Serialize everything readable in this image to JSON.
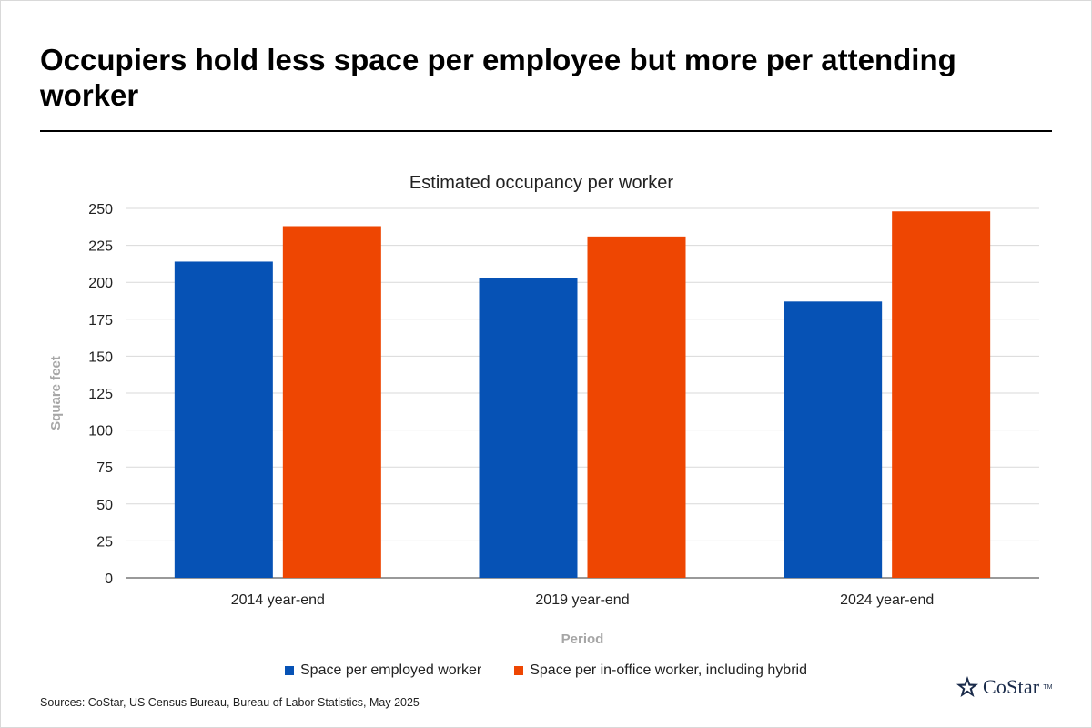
{
  "headline": "Occupiers hold less space per employee but more per attending worker",
  "source": "Sources: CoStar, US Census Bureau, Bureau of Labor Statistics, May 2025",
  "logo": {
    "text": "CoStar",
    "tm": "TM"
  },
  "colors": {
    "series1": "#0652b5",
    "series2": "#ee4602",
    "grid": "#d9d9d9",
    "axis_title": "#a6a6a6"
  },
  "chart_data": {
    "type": "bar",
    "title": "Estimated occupancy per worker",
    "xlabel": "Period",
    "ylabel": "Square feet",
    "categories": [
      "2014 year-end",
      "2019 year-end",
      "2024 year-end"
    ],
    "series": [
      {
        "name": "Space per employed worker",
        "values": [
          214,
          203,
          187
        ]
      },
      {
        "name": "Space per in-office worker, including hybrid",
        "values": [
          238,
          231,
          248
        ]
      }
    ],
    "ylim": [
      0,
      250
    ],
    "yticks": [
      0,
      25,
      50,
      75,
      100,
      125,
      150,
      175,
      200,
      225,
      250
    ],
    "grid": true,
    "legend": "bottom"
  }
}
